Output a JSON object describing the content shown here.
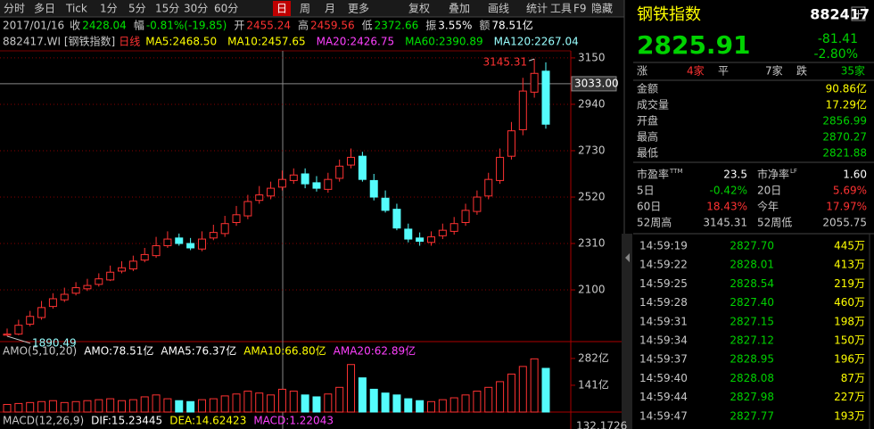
{
  "toolbar": {
    "tabs": [
      "分时",
      "多日",
      "Tick",
      "1分",
      "5分",
      "15分",
      "30分",
      "60分",
      "日",
      "周",
      "月",
      "更多"
    ],
    "tools": [
      "复权",
      "叠加",
      "画线",
      "统计",
      "工具",
      "F9",
      "隐藏"
    ]
  },
  "info_bar": {
    "date": "2017/01/16",
    "items": [
      {
        "label": "收",
        "value": "2428.04"
      },
      {
        "label": "幅",
        "value": "-0.81%(-19.85)"
      },
      {
        "label": "开",
        "value": "2455.24"
      },
      {
        "label": "高",
        "value": "2459.56"
      },
      {
        "label": "低",
        "value": "2372.66"
      },
      {
        "label": "振",
        "value": "3.55%"
      },
      {
        "label": "额",
        "value": "78.51亿"
      }
    ]
  },
  "indicator_bar": {
    "code": "882417.WI [钢铁指数]",
    "period": "日线",
    "ma": [
      "MA5:2468.50",
      "MA10:2457.65",
      "MA20:2426.75",
      "MA60:2390.89",
      "MA120:2267.04"
    ]
  },
  "amo_bar": [
    "AMO(5,10,20)",
    "AMO:78.51亿",
    "AMA5:76.37亿",
    "AMA10:66.80亿",
    "AMA20:62.89亿"
  ],
  "macd_bar": {
    "items": [
      "MACD(12,26,9)",
      "DIF:15.23445",
      "DEA:14.62423",
      "MACD:1.22043"
    ],
    "axis_label": "132.1726"
  },
  "chart_data": {
    "type": "candlestick",
    "open": [
      1895,
      1900,
      1945,
      1975,
      2025,
      2055,
      2085,
      2105,
      2125,
      2145,
      2185,
      2195,
      2235,
      2255,
      2300,
      2335,
      2310,
      2285,
      2335,
      2355,
      2405,
      2435,
      2505,
      2525,
      2565,
      2595,
      2625,
      2585,
      2555,
      2605,
      2665,
      2705,
      2595,
      2515,
      2465,
      2375,
      2335,
      2315,
      2345,
      2365,
      2405,
      2455,
      2525,
      2595,
      2705,
      2825,
      2995,
      3090
    ],
    "high": [
      1925,
      1965,
      2005,
      2050,
      2085,
      2110,
      2135,
      2150,
      2175,
      2210,
      2230,
      2255,
      2290,
      2340,
      2365,
      2355,
      2335,
      2365,
      2395,
      2435,
      2480,
      2530,
      2570,
      2590,
      2640,
      2650,
      2650,
      2615,
      2630,
      2690,
      2740,
      2725,
      2625,
      2550,
      2490,
      2400,
      2360,
      2365,
      2400,
      2430,
      2490,
      2550,
      2630,
      2740,
      2860,
      3060,
      3145.31,
      3130
    ],
    "low": [
      1890.49,
      1895,
      1935,
      1965,
      2015,
      2045,
      2075,
      2095,
      2115,
      2140,
      2175,
      2185,
      2225,
      2245,
      2290,
      2300,
      2280,
      2275,
      2325,
      2340,
      2390,
      2420,
      2490,
      2510,
      2550,
      2580,
      2560,
      2545,
      2540,
      2590,
      2650,
      2590,
      2505,
      2450,
      2370,
      2315,
      2300,
      2300,
      2330,
      2350,
      2390,
      2440,
      2510,
      2580,
      2690,
      2800,
      2970,
      2830
    ],
    "close": [
      1900,
      1940,
      1980,
      2020,
      2060,
      2080,
      2110,
      2120,
      2150,
      2180,
      2200,
      2230,
      2260,
      2300,
      2330,
      2310,
      2290,
      2330,
      2360,
      2400,
      2440,
      2500,
      2530,
      2560,
      2600,
      2620,
      2580,
      2560,
      2600,
      2660,
      2700,
      2600,
      2520,
      2460,
      2380,
      2330,
      2320,
      2340,
      2370,
      2400,
      2460,
      2520,
      2600,
      2700,
      2820,
      3000,
      3080,
      2850
    ],
    "ylim": [
      1866,
      3182
    ],
    "yticks": [
      2100,
      2310,
      2520,
      2730,
      2940,
      3150
    ],
    "crosshair": {
      "value": 3033,
      "label": "3033.00"
    },
    "up_color": "#ff3232",
    "down_color": "#54fcfc",
    "grid": true,
    "volume": {
      "values": [
        40,
        45,
        50,
        55,
        60,
        50,
        55,
        60,
        65,
        70,
        60,
        65,
        80,
        90,
        70,
        60,
        55,
        65,
        70,
        85,
        95,
        110,
        100,
        90,
        120,
        110,
        90,
        80,
        95,
        130,
        250,
        180,
        120,
        100,
        90,
        70,
        60,
        55,
        65,
        75,
        90,
        110,
        130,
        160,
        200,
        240,
        280,
        230
      ],
      "ylim": [
        0,
        352
      ],
      "yticks": [
        {
          "value": 141,
          "label": "141亿"
        },
        {
          "value": 282,
          "label": "282亿"
        }
      ]
    }
  },
  "quote": {
    "name": "钢铁指数",
    "code": "882417",
    "price": "2825.91",
    "change": "-81.41",
    "change_pct": "-2.80%",
    "breadth": [
      "涨",
      "4家",
      "平",
      "7家",
      "跌",
      "35家"
    ],
    "stats": [
      [
        "金额",
        "90.86亿"
      ],
      [
        "成交量",
        "17.29亿"
      ],
      [
        "开盘",
        "2856.99"
      ],
      [
        "最高",
        "2870.27"
      ],
      [
        "最低",
        "2821.88"
      ]
    ],
    "ratios": [
      [
        "市盈率",
        "TTM",
        "23.5",
        "市净率",
        "LF",
        "1.60"
      ],
      [
        "5日",
        "",
        "-0.42%",
        "20日",
        "",
        "5.69%"
      ],
      [
        "60日",
        "",
        "18.43%",
        "今年",
        "",
        "17.97%"
      ],
      [
        "52周高",
        "",
        "3145.31",
        "52周低",
        "",
        "2055.75"
      ]
    ],
    "ticks": [
      [
        "14:59:19",
        "2827.70",
        "445万"
      ],
      [
        "14:59:22",
        "2828.01",
        "413万"
      ],
      [
        "14:59:25",
        "2828.54",
        "219万"
      ],
      [
        "14:59:28",
        "2827.40",
        "460万"
      ],
      [
        "14:59:31",
        "2827.15",
        "198万"
      ],
      [
        "14:59:34",
        "2827.12",
        "150万"
      ],
      [
        "14:59:37",
        "2828.95",
        "196万"
      ],
      [
        "14:59:40",
        "2828.08",
        "87万"
      ],
      [
        "14:59:44",
        "2827.98",
        "227万"
      ],
      [
        "14:59:47",
        "2827.77",
        "193万"
      ]
    ]
  }
}
